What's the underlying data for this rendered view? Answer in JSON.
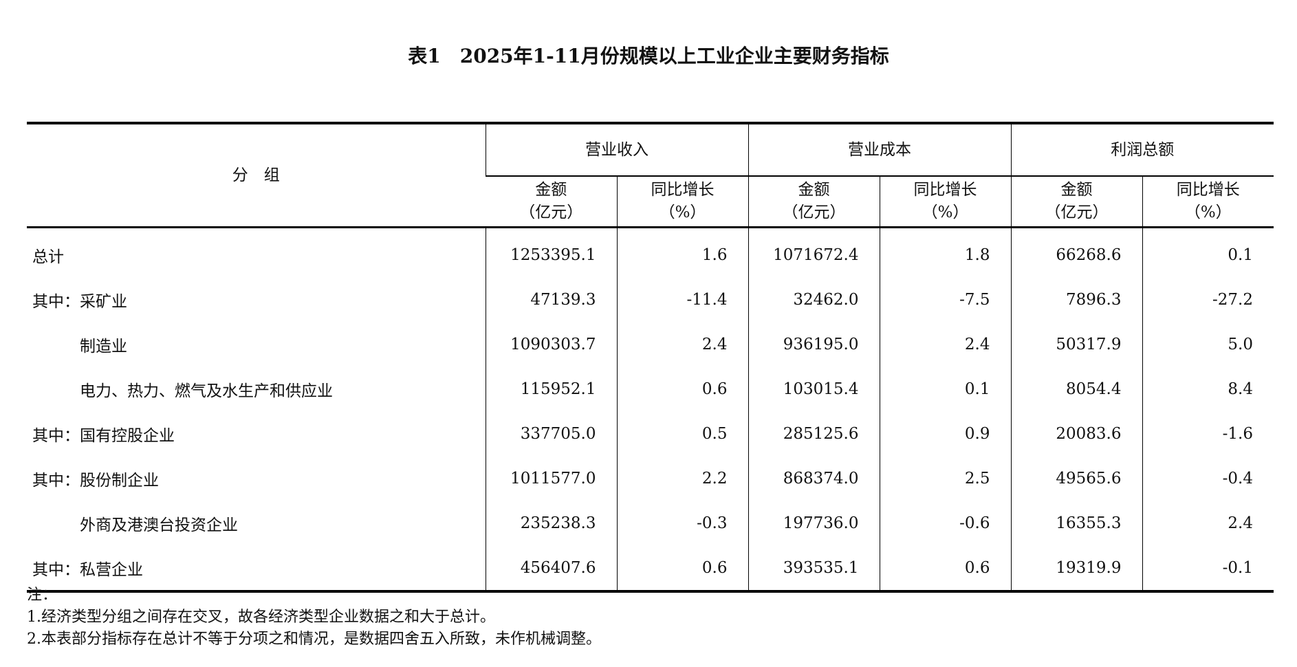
{
  "title": "表1　2025年1-11月份规模以上工业企业主要财务指标",
  "header": {
    "group": "分　组",
    "groups": [
      "营业收入",
      "营业成本",
      "利润总额"
    ],
    "sub_amount": [
      "金额",
      "（亿元）"
    ],
    "sub_growth": [
      "同比增长",
      "（%）"
    ]
  },
  "rows": [
    {
      "name": "总计",
      "cells": [
        "1253395.1",
        "1.6",
        "1071672.4",
        "1.8",
        "66268.6",
        "0.1"
      ]
    },
    {
      "name": "其中：采矿业",
      "cells": [
        "47139.3",
        "-11.4",
        "32462.0",
        "-7.5",
        "7896.3",
        "-27.2"
      ]
    },
    {
      "name": "　　　制造业",
      "cells": [
        "1090303.7",
        "2.4",
        "936195.0",
        "2.4",
        "50317.9",
        "5.0"
      ]
    },
    {
      "name": "　　　电力、热力、燃气及水生产和供应业",
      "cells": [
        "115952.1",
        "0.6",
        "103015.4",
        "0.1",
        "8054.4",
        "8.4"
      ]
    },
    {
      "name": "其中：国有控股企业",
      "cells": [
        "337705.0",
        "0.5",
        "285125.6",
        "0.9",
        "20083.6",
        "-1.6"
      ]
    },
    {
      "name": "其中：股份制企业",
      "cells": [
        "1011577.0",
        "2.2",
        "868374.0",
        "2.5",
        "49565.6",
        "-0.4"
      ]
    },
    {
      "name": "　　　外商及港澳台投资企业",
      "cells": [
        "235238.3",
        "-0.3",
        "197736.0",
        "-0.6",
        "16355.3",
        "2.4"
      ]
    },
    {
      "name": "其中：私营企业",
      "cells": [
        "456407.6",
        "0.6",
        "393535.1",
        "0.6",
        "19319.9",
        "-0.1"
      ]
    }
  ],
  "notes": [
    "注：",
    "1.经济类型分组之间存在交叉，故各经济类型企业数据之和大于总计。",
    "2.本表部分指标存在总计不等于分项之和情况，是数据四舍五入所致，未作机械调整。"
  ]
}
